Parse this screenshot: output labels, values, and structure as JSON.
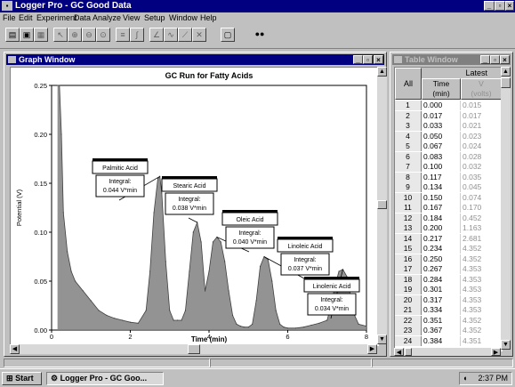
{
  "app": {
    "title": "Logger Pro - GC Good Data",
    "window_buttons": [
      "_",
      "▫",
      "×"
    ]
  },
  "menu": [
    "File",
    "Edit",
    "Experiment",
    "Data",
    "Analyze",
    "View",
    "Setup",
    "Window",
    "Help"
  ],
  "graph_window": {
    "title": "Graph Window",
    "buttons": [
      "_",
      "▫",
      "×"
    ]
  },
  "table_window": {
    "title": "Table Window",
    "buttons": [
      "_",
      "▫",
      "×"
    ],
    "all_label": "All",
    "latest_label": "Latest",
    "col_time": [
      "Time",
      "(min)"
    ],
    "col_v": [
      "V",
      "(volts)"
    ],
    "rows": [
      [
        "1",
        "0.000",
        "0.015"
      ],
      [
        "2",
        "0.017",
        "0.017"
      ],
      [
        "3",
        "0.033",
        "0.021"
      ],
      [
        "4",
        "0.050",
        "0.023"
      ],
      [
        "5",
        "0.067",
        "0.024"
      ],
      [
        "6",
        "0.083",
        "0.028"
      ],
      [
        "7",
        "0.100",
        "0.032"
      ],
      [
        "8",
        "0.117",
        "0.035"
      ],
      [
        "9",
        "0.134",
        "0.045"
      ],
      [
        "10",
        "0.150",
        "0.074"
      ],
      [
        "11",
        "0.167",
        "0.170"
      ],
      [
        "12",
        "0.184",
        "0.452"
      ],
      [
        "13",
        "0.200",
        "1.163"
      ],
      [
        "14",
        "0.217",
        "2.681"
      ],
      [
        "15",
        "0.234",
        "4.352"
      ],
      [
        "16",
        "0.250",
        "4.352"
      ],
      [
        "17",
        "0.267",
        "4.353"
      ],
      [
        "18",
        "0.284",
        "4.353"
      ],
      [
        "19",
        "0.301",
        "4.353"
      ],
      [
        "20",
        "0.317",
        "4.353"
      ],
      [
        "21",
        "0.334",
        "4.353"
      ],
      [
        "22",
        "0.351",
        "4.352"
      ],
      [
        "23",
        "0.367",
        "4.352"
      ],
      [
        "24",
        "0.384",
        "4.351"
      ]
    ]
  },
  "taskbar": {
    "start": "Start",
    "task": "Logger Pro - GC Goo...",
    "clock": "2:37 PM"
  },
  "chart_data": {
    "type": "area",
    "title": "GC Run for Fatty Acids",
    "xlabel": "Time (min)",
    "ylabel": "Potential (V)",
    "xlim": [
      0,
      8
    ],
    "ylim": [
      0,
      0.25
    ],
    "xticks": [
      "0",
      "2",
      "4",
      "6",
      "8"
    ],
    "yticks": [
      "0.00",
      "0.05",
      "0.10",
      "0.15",
      "0.20",
      "0.25"
    ],
    "series": [
      {
        "x": [
          0.15,
          0.2,
          0.25,
          0.3,
          0.4,
          0.5,
          0.6,
          0.8,
          1.0,
          1.2,
          1.4,
          1.6,
          1.8,
          2.0,
          2.2,
          2.4,
          2.5,
          2.6,
          2.7,
          2.75,
          2.8,
          2.9,
          3.0,
          3.1,
          3.2,
          3.3,
          3.4,
          3.5,
          3.6,
          3.7,
          3.8,
          3.9,
          4.0,
          4.1,
          4.2,
          4.3,
          4.4,
          4.5,
          4.6,
          4.7,
          4.8,
          4.9,
          5.0,
          5.1,
          5.2,
          5.3,
          5.4,
          5.5,
          5.6,
          5.7,
          5.8,
          5.9,
          6.0,
          6.2,
          6.4,
          6.6,
          6.8,
          7.0,
          7.1,
          7.2,
          7.3,
          7.4,
          7.5,
          7.6,
          7.7,
          7.8,
          8.0
        ],
        "y": [
          0.25,
          0.25,
          0.2,
          0.12,
          0.08,
          0.06,
          0.05,
          0.04,
          0.03,
          0.02,
          0.015,
          0.012,
          0.01,
          0.008,
          0.007,
          0.02,
          0.06,
          0.12,
          0.155,
          0.157,
          0.14,
          0.07,
          0.02,
          0.01,
          0.01,
          0.01,
          0.02,
          0.06,
          0.1,
          0.11,
          0.09,
          0.04,
          0.06,
          0.09,
          0.095,
          0.09,
          0.07,
          0.04,
          0.015,
          0.006,
          0.004,
          0.003,
          0.003,
          0.006,
          0.03,
          0.065,
          0.075,
          0.072,
          0.05,
          0.02,
          0.006,
          0.003,
          0.002,
          0.002,
          0.003,
          0.005,
          0.007,
          0.01,
          0.025,
          0.045,
          0.06,
          0.062,
          0.055,
          0.035,
          0.015,
          0.006,
          0.004
        ]
      }
    ],
    "annotations": [
      {
        "name": "Palmitic Acid",
        "integral": [
          "Integral:",
          "0.044 V*min"
        ],
        "peak_x": 2.75,
        "peak_y": 0.157
      },
      {
        "name": "Stearic Acid",
        "integral": [
          "Integral:",
          "0.038 V*min"
        ],
        "peak_x": 3.7,
        "peak_y": 0.11
      },
      {
        "name": "Oleic Acid",
        "integral": [
          "Integral:",
          "0.040 V*min"
        ],
        "peak_x": 4.2,
        "peak_y": 0.095
      },
      {
        "name": "Linoleic  Acid",
        "integral": [
          "Integral:",
          "0.037 V*min"
        ],
        "peak_x": 5.4,
        "peak_y": 0.075
      },
      {
        "name": "Linolenic Acid",
        "integral": [
          "Integral:",
          "0.034 V*min"
        ],
        "peak_x": 7.4,
        "peak_y": 0.062
      }
    ]
  }
}
